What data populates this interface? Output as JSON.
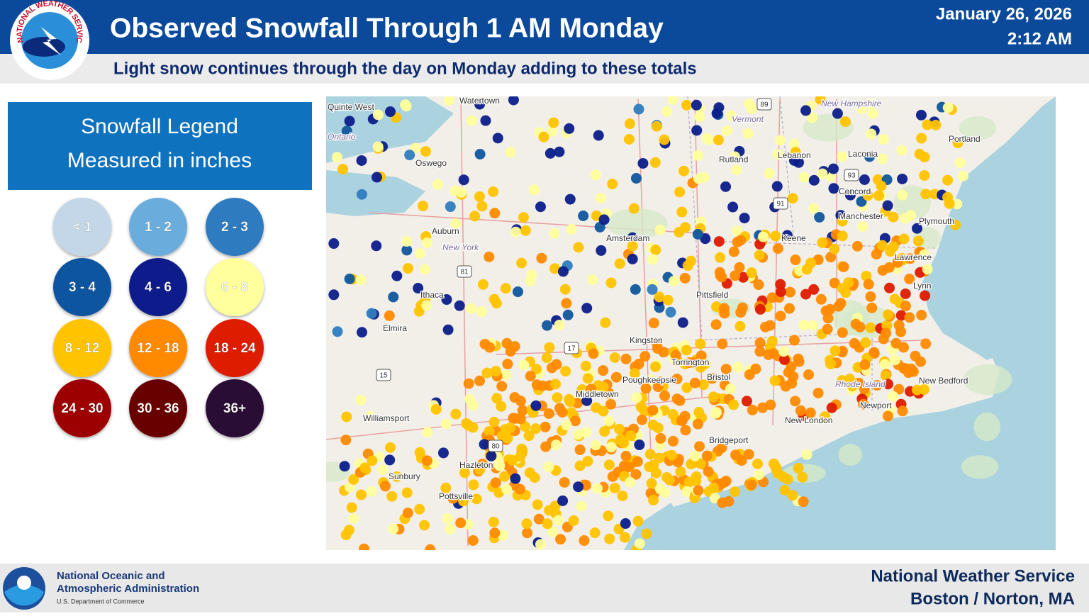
{
  "header": {
    "title": "Observed Snowfall Through 1 AM Monday",
    "date": "January 26, 2026",
    "time": "2:12 AM",
    "subtitle": "Light snow continues through the day on Monday adding to these totals",
    "logo_text": "NATIONAL WEATHER SERVICE"
  },
  "legend": {
    "title": "Snowfall Legend",
    "subtitle": "Measured in inches",
    "items": [
      {
        "label": "< 1",
        "color": "#c3d7e8"
      },
      {
        "label": "1 - 2",
        "color": "#6aaddc"
      },
      {
        "label": "2 - 3",
        "color": "#2f7cbf"
      },
      {
        "label": "3 - 4",
        "color": "#0f559e"
      },
      {
        "label": "4 - 6",
        "color": "#0b1e8a"
      },
      {
        "label": "6 - 8",
        "color": "#ffff9c"
      },
      {
        "label": "8 - 12",
        "color": "#ffc300"
      },
      {
        "label": "12 - 18",
        "color": "#ff8a00"
      },
      {
        "label": "18 - 24",
        "color": "#de1a00"
      },
      {
        "label": "24 - 30",
        "color": "#9c0000"
      },
      {
        "label": "30 - 36",
        "color": "#680000"
      },
      {
        "label": "36+",
        "color": "#2c0836"
      }
    ]
  },
  "map": {
    "place_labels": [
      "Quinte West",
      "Watertown",
      "Ontario",
      "Oswego",
      "Vermont",
      "New Hampshire",
      "Portland",
      "Rutland",
      "Lebanon",
      "Laconia",
      "Concord",
      "Manchester",
      "Keene",
      "Amsterdam",
      "Auburn",
      "New York",
      "Ithaca",
      "Elmira",
      "Kingston",
      "Torrington",
      "Bristol",
      "Pittsfield",
      "Lynn",
      "Lawrence",
      "Plymouth",
      "New Bedford",
      "Newport",
      "New London",
      "Bridgeport",
      "Williamsport",
      "Hazleton",
      "Pottsville",
      "Middletown",
      "Poughkeepsie",
      "Sunbury",
      "Rhode Island"
    ],
    "shields": [
      "89",
      "91",
      "93",
      "81",
      "17",
      "15",
      "80"
    ]
  },
  "footer": {
    "agency_line1": "National Oceanic and",
    "agency_line2": "Atmospheric Administration",
    "department": "U.S. Department of Commerce",
    "office_line1": "National Weather Service",
    "office_line2": "Boston / Norton, MA"
  }
}
